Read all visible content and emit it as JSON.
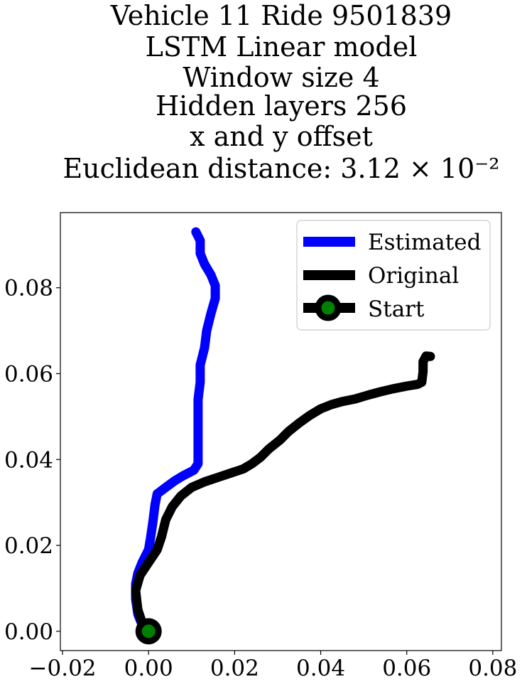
{
  "chart_data": {
    "type": "line",
    "title_lines": [
      "Vehicle 11 Ride 9501839",
      "LSTM Linear model",
      "Window size 4",
      "Hidden layers 256",
      "x and y offset",
      "Euclidean distance: 3.12 × 10⁻²"
    ],
    "xlabel": "",
    "ylabel": "",
    "xlim": [
      -0.0205,
      0.082
    ],
    "ylim": [
      -0.0045,
      0.0975
    ],
    "x_ticks": [
      -0.02,
      0.0,
      0.02,
      0.04,
      0.06,
      0.08
    ],
    "x_tick_labels": [
      "−0.02",
      "0.00",
      "0.02",
      "0.04",
      "0.06",
      "0.08"
    ],
    "y_ticks": [
      0.0,
      0.02,
      0.04,
      0.06,
      0.08
    ],
    "y_tick_labels": [
      "0.00",
      "0.02",
      "0.04",
      "0.06",
      "0.08"
    ],
    "grid": false,
    "legend_position": "upper-right",
    "series": [
      {
        "name": "Estimated",
        "color": "#0000ff",
        "points": [
          [
            0.0,
            0.0
          ],
          [
            -0.0015,
            0.0015
          ],
          [
            -0.0025,
            0.004
          ],
          [
            -0.003,
            0.0075
          ],
          [
            -0.003,
            0.011
          ],
          [
            -0.0025,
            0.0135
          ],
          [
            -0.0015,
            0.016
          ],
          [
            0.0,
            0.019
          ],
          [
            0.0005,
            0.022
          ],
          [
            0.001,
            0.0255
          ],
          [
            0.0015,
            0.0295
          ],
          [
            0.002,
            0.032
          ],
          [
            0.004,
            0.0335
          ],
          [
            0.006,
            0.035
          ],
          [
            0.008,
            0.0362
          ],
          [
            0.0105,
            0.0375
          ],
          [
            0.0115,
            0.039
          ],
          [
            0.0115,
            0.042
          ],
          [
            0.0115,
            0.046
          ],
          [
            0.0115,
            0.05
          ],
          [
            0.0115,
            0.054
          ],
          [
            0.012,
            0.058
          ],
          [
            0.012,
            0.062
          ],
          [
            0.013,
            0.066
          ],
          [
            0.0135,
            0.07
          ],
          [
            0.0145,
            0.074
          ],
          [
            0.0155,
            0.0775
          ],
          [
            0.0155,
            0.0805
          ],
          [
            0.0145,
            0.083
          ],
          [
            0.013,
            0.0855
          ],
          [
            0.012,
            0.088
          ],
          [
            0.012,
            0.091
          ],
          [
            0.011,
            0.093
          ]
        ]
      },
      {
        "name": "Original",
        "color": "#000000",
        "points": [
          [
            0.0,
            0.0
          ],
          [
            -0.0015,
            0.002
          ],
          [
            -0.0025,
            0.005
          ],
          [
            -0.003,
            0.0095
          ],
          [
            -0.002,
            0.013
          ],
          [
            0.0,
            0.016
          ],
          [
            0.002,
            0.019
          ],
          [
            0.003,
            0.022
          ],
          [
            0.004,
            0.026
          ],
          [
            0.0055,
            0.029
          ],
          [
            0.0075,
            0.0315
          ],
          [
            0.01,
            0.0335
          ],
          [
            0.013,
            0.0348
          ],
          [
            0.016,
            0.0358
          ],
          [
            0.019,
            0.0368
          ],
          [
            0.022,
            0.0378
          ],
          [
            0.024,
            0.039
          ],
          [
            0.026,
            0.0405
          ],
          [
            0.028,
            0.0425
          ],
          [
            0.0305,
            0.0445
          ],
          [
            0.0325,
            0.0465
          ],
          [
            0.035,
            0.0485
          ],
          [
            0.0375,
            0.0503
          ],
          [
            0.04,
            0.0518
          ],
          [
            0.0425,
            0.0528
          ],
          [
            0.045,
            0.0535
          ],
          [
            0.048,
            0.0541
          ],
          [
            0.051,
            0.055
          ],
          [
            0.054,
            0.0558
          ],
          [
            0.057,
            0.0565
          ],
          [
            0.06,
            0.0571
          ],
          [
            0.0625,
            0.0575
          ],
          [
            0.0635,
            0.058
          ],
          [
            0.0638,
            0.0605
          ],
          [
            0.0638,
            0.0628
          ],
          [
            0.0645,
            0.0641
          ],
          [
            0.0655,
            0.064
          ]
        ]
      },
      {
        "name": "Start",
        "color": "#008000",
        "marker": "circle",
        "points": [
          [
            0.0,
            0.0
          ]
        ]
      }
    ]
  }
}
